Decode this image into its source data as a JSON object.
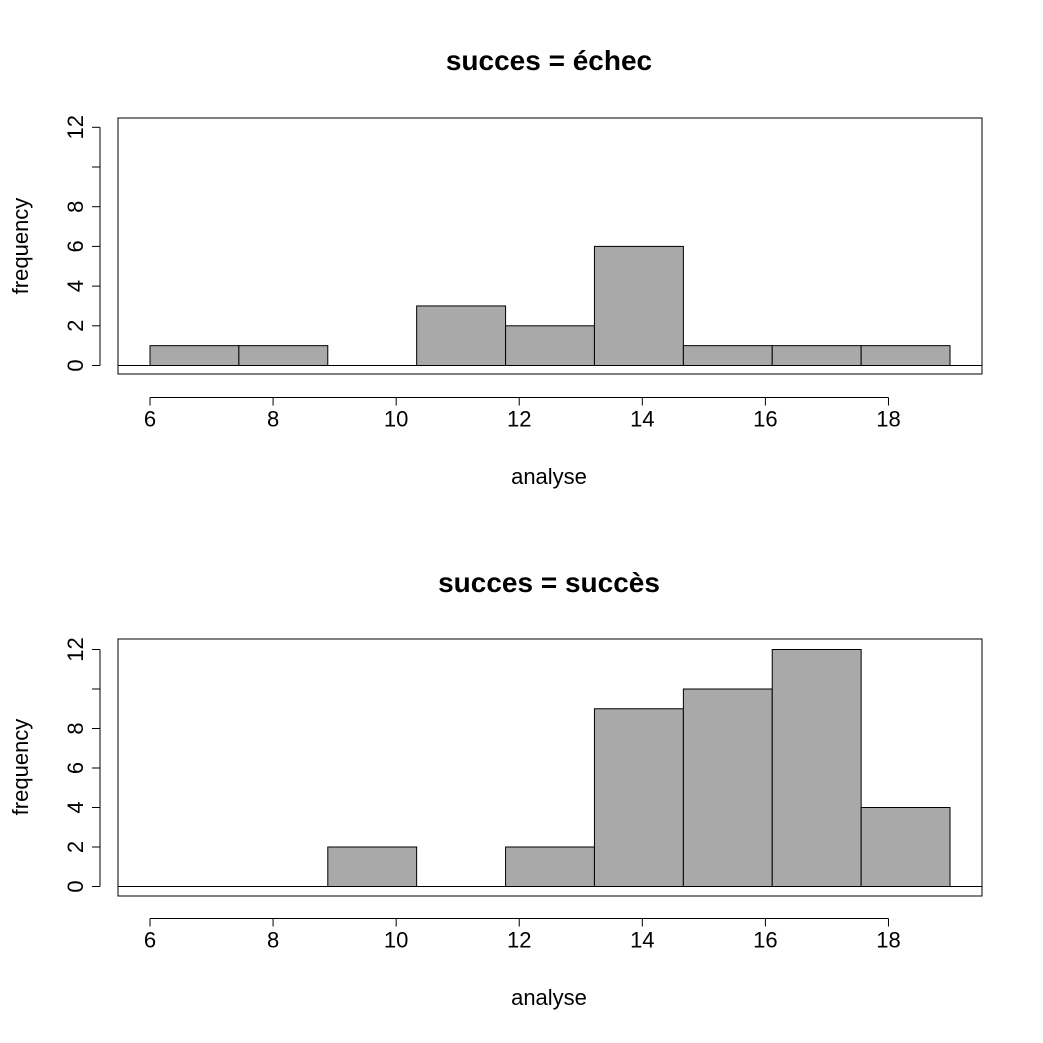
{
  "chart_data": [
    {
      "type": "bar",
      "title": "succes = échec",
      "xlabel": "analyse",
      "ylabel": "frequency",
      "bin_edges": [
        6.0,
        7.444,
        8.889,
        10.333,
        11.778,
        13.222,
        14.667,
        16.111,
        17.556,
        19.0
      ],
      "values": [
        1,
        1,
        0,
        3,
        2,
        6,
        1,
        1,
        1
      ],
      "xlim": [
        6,
        19
      ],
      "ylim": [
        0,
        12
      ],
      "xticks": [
        "6",
        "8",
        "10",
        "12",
        "14",
        "16",
        "18"
      ],
      "yticks": [
        "0",
        "2",
        "4",
        "6",
        "8",
        "",
        "12"
      ],
      "bar_color": "#a9a9a9",
      "grid": false
    },
    {
      "type": "bar",
      "title": "succes = succès",
      "xlabel": "analyse",
      "ylabel": "frequency",
      "bin_edges": [
        6.0,
        7.444,
        8.889,
        10.333,
        11.778,
        13.222,
        14.667,
        16.111,
        17.556,
        19.0
      ],
      "values": [
        0,
        0,
        2,
        0,
        2,
        9,
        10,
        12,
        4
      ],
      "xlim": [
        6,
        19
      ],
      "ylim": [
        0,
        12
      ],
      "xticks": [
        "6",
        "8",
        "10",
        "12",
        "14",
        "16",
        "18"
      ],
      "yticks": [
        "0",
        "2",
        "4",
        "6",
        "8",
        "",
        "12"
      ],
      "bar_color": "#a9a9a9",
      "grid": false
    }
  ]
}
